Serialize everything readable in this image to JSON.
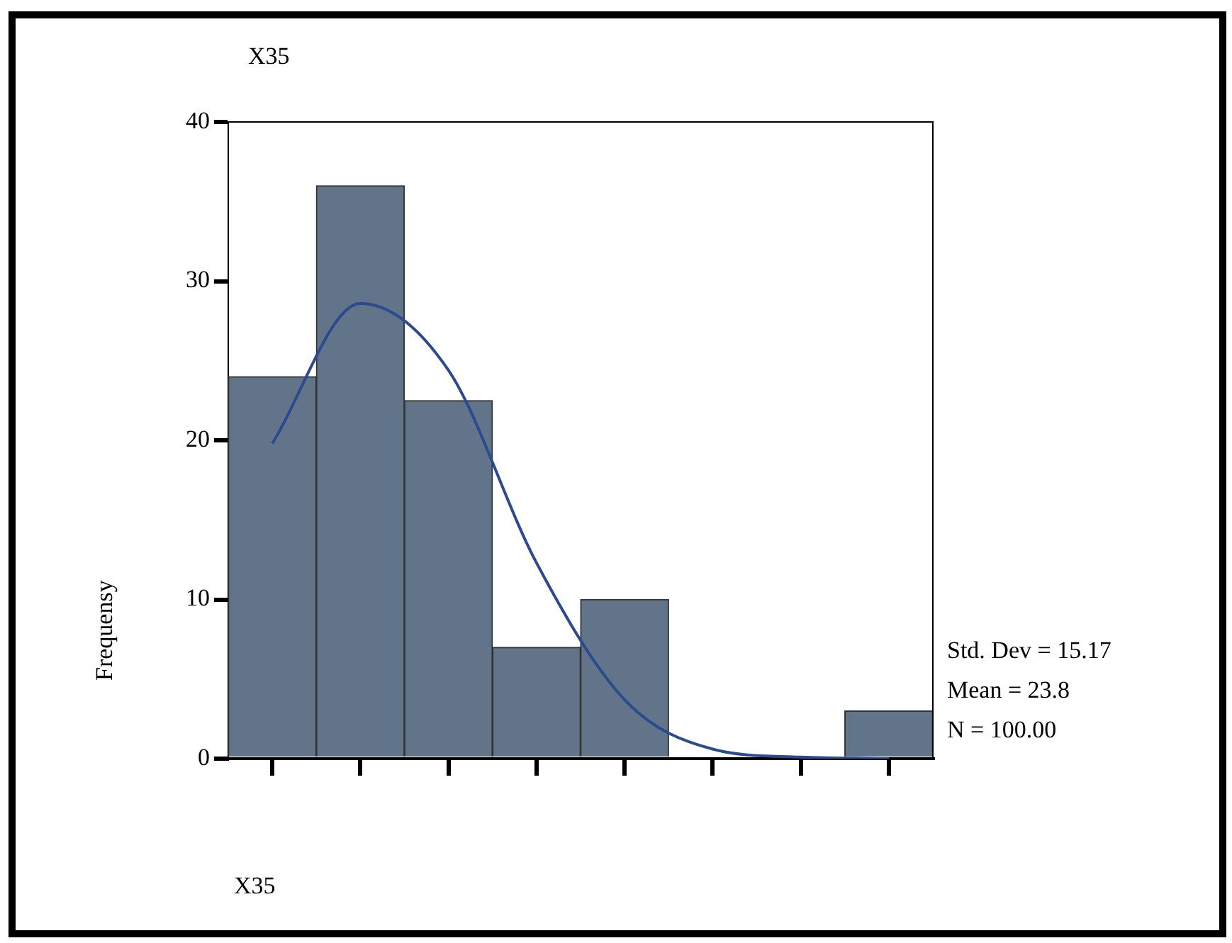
{
  "chart_data": {
    "type": "bar",
    "title": "X35",
    "xlabel": "X35",
    "ylabel": "Frequensy",
    "categories": [
      null,
      null,
      null,
      null,
      null,
      null,
      null,
      null
    ],
    "series": [
      {
        "color": "#627489",
        "values": [
          24,
          36,
          22.5,
          7,
          10,
          0,
          0,
          3
        ]
      },
      {
        "type": "line",
        "color": "#2b4a8f",
        "values": [
          19.8,
          28.6,
          24.4,
          12.3,
          3.7,
          0.6,
          0.1,
          0
        ]
      }
    ],
    "ylim": [
      0,
      40
    ],
    "yticks": [
      0,
      10,
      20,
      30,
      40
    ],
    "grid": false,
    "legend": false,
    "tick_labels": "y",
    "marker": "none",
    "line_style": "solid",
    "annotations": [
      "Std. Dev = 15.17",
      "Mean = 23.8",
      "N = 100.00"
    ]
  }
}
